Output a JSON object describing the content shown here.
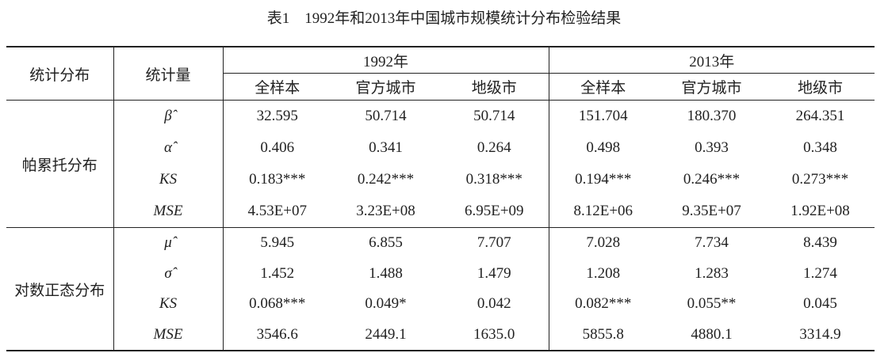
{
  "title": "表1　1992年和2013年中国城市规模统计分布检验结果",
  "table": {
    "header": {
      "distribution": "统计分布",
      "statistic": "统计量",
      "periods": [
        "1992年",
        "2013年"
      ],
      "samples": [
        [
          "全样本",
          "官方城市",
          "地级市"
        ],
        [
          "全样本",
          "官方城市",
          "地级市"
        ]
      ]
    },
    "groups": [
      {
        "name": "帕累托分布",
        "rows": [
          {
            "stat": "β̂",
            "values": [
              "32.595",
              "50.714",
              "50.714",
              "151.704",
              "180.370",
              "264.351"
            ]
          },
          {
            "stat": "α̂",
            "values": [
              "0.406",
              "0.341",
              "0.264",
              "0.498",
              "0.393",
              "0.348"
            ]
          },
          {
            "stat": "KS",
            "values": [
              "0.183***",
              "0.242***",
              "0.318***",
              "0.194***",
              "0.246***",
              "0.273***"
            ]
          },
          {
            "stat": "MSE",
            "values": [
              "4.53E+07",
              "3.23E+08",
              "6.95E+09",
              "8.12E+06",
              "9.35E+07",
              "1.92E+08"
            ]
          }
        ]
      },
      {
        "name": "对数正态分布",
        "rows": [
          {
            "stat": "μ̂",
            "values": [
              "5.945",
              "6.855",
              "7.707",
              "7.028",
              "7.734",
              "8.439"
            ]
          },
          {
            "stat": "σ̂",
            "values": [
              "1.452",
              "1.488",
              "1.479",
              "1.208",
              "1.283",
              "1.274"
            ]
          },
          {
            "stat": "KS",
            "values": [
              "0.068***",
              "0.049*",
              "0.042",
              "0.082***",
              "0.055**",
              "0.045"
            ]
          },
          {
            "stat": "MSE",
            "values": [
              "3546.6",
              "2449.1",
              "1635.0",
              "5855.8",
              "4880.1",
              "3314.9"
            ]
          }
        ]
      }
    ]
  }
}
